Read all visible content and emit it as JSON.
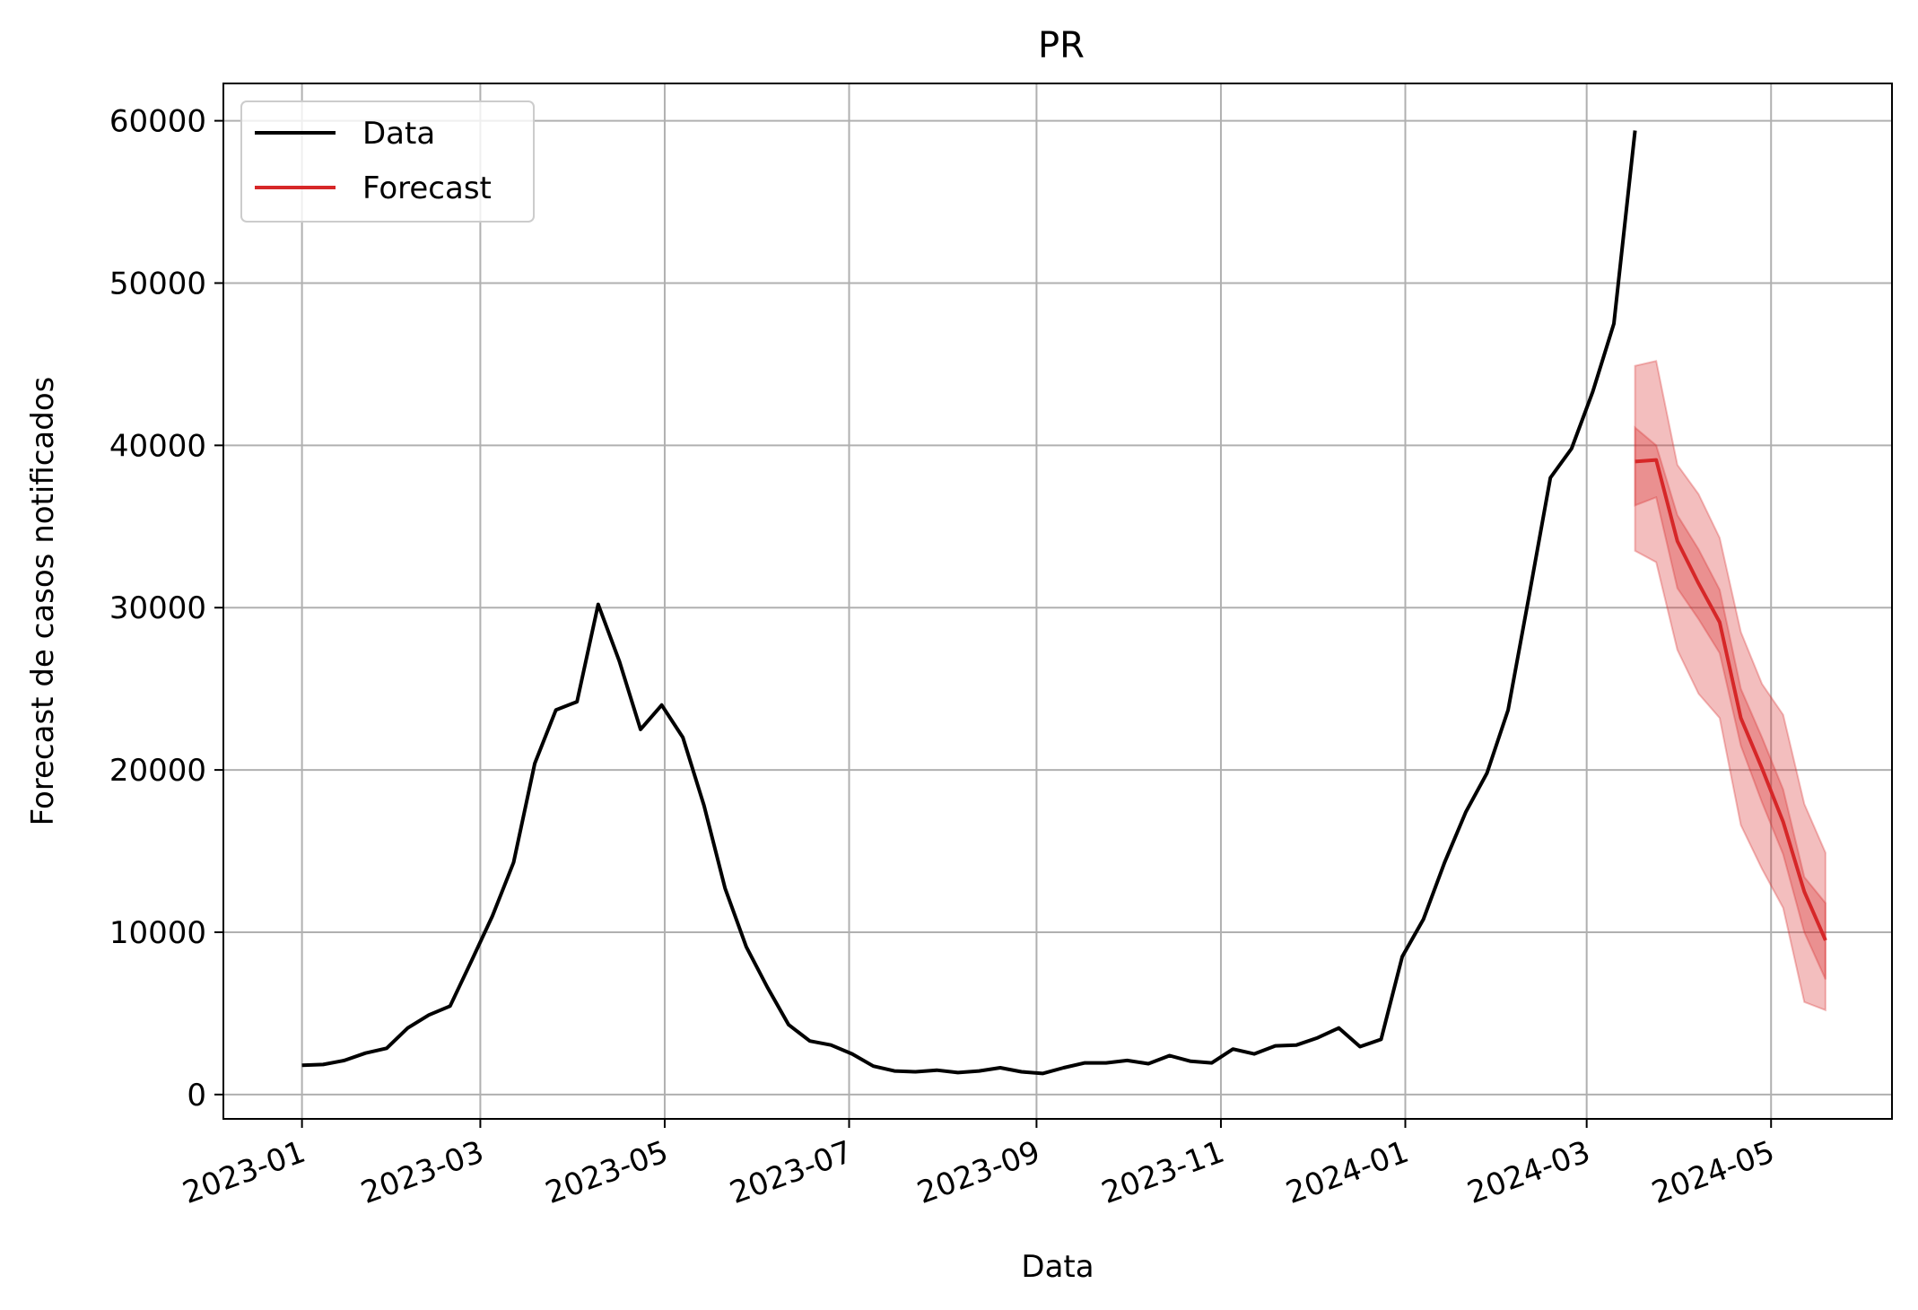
{
  "chart_data": {
    "type": "line",
    "title": "PR",
    "xlabel": "Data",
    "ylabel": "Forecast de casos notificados",
    "xlim": [
      "2022-12-06",
      "2024-06-10"
    ],
    "ylim": [
      -1500,
      62300
    ],
    "grid": true,
    "legend_position": "upper left",
    "x_tick_labels": [
      "2023-01",
      "2023-03",
      "2023-05",
      "2023-07",
      "2023-09",
      "2023-11",
      "2024-01",
      "2024-03",
      "2024-05"
    ],
    "y_tick_labels": [
      "0",
      "10000",
      "20000",
      "30000",
      "40000",
      "50000",
      "60000"
    ],
    "legend": [
      {
        "label": "Data",
        "color": "#000000"
      },
      {
        "label": "Forecast",
        "color": "#d62728"
      }
    ],
    "series": [
      {
        "name": "Data",
        "color": "#000000",
        "points": [
          [
            "2023-01-01",
            1800
          ],
          [
            "2023-01-08",
            1850
          ],
          [
            "2023-01-15",
            2100
          ],
          [
            "2023-01-22",
            2550
          ],
          [
            "2023-01-29",
            2850
          ],
          [
            "2023-02-05",
            4100
          ],
          [
            "2023-02-12",
            4900
          ],
          [
            "2023-02-19",
            5450
          ],
          [
            "2023-02-26",
            8200
          ],
          [
            "2023-03-05",
            11000
          ],
          [
            "2023-03-12",
            14300
          ],
          [
            "2023-03-19",
            20400
          ],
          [
            "2023-03-26",
            23700
          ],
          [
            "2023-04-02",
            24200
          ],
          [
            "2023-04-09",
            30200
          ],
          [
            "2023-04-16",
            26700
          ],
          [
            "2023-04-23",
            22500
          ],
          [
            "2023-04-30",
            24000
          ],
          [
            "2023-05-07",
            22000
          ],
          [
            "2023-05-14",
            17800
          ],
          [
            "2023-05-21",
            12700
          ],
          [
            "2023-05-28",
            9100
          ],
          [
            "2023-06-04",
            6600
          ],
          [
            "2023-06-11",
            4300
          ],
          [
            "2023-06-18",
            3300
          ],
          [
            "2023-06-25",
            3050
          ],
          [
            "2023-07-02",
            2500
          ],
          [
            "2023-07-09",
            1750
          ],
          [
            "2023-07-16",
            1450
          ],
          [
            "2023-07-23",
            1400
          ],
          [
            "2023-07-30",
            1500
          ],
          [
            "2023-08-06",
            1350
          ],
          [
            "2023-08-13",
            1450
          ],
          [
            "2023-08-20",
            1650
          ],
          [
            "2023-08-27",
            1400
          ],
          [
            "2023-09-03",
            1300
          ],
          [
            "2023-09-10",
            1650
          ],
          [
            "2023-09-17",
            1950
          ],
          [
            "2023-09-24",
            1950
          ],
          [
            "2023-10-01",
            2100
          ],
          [
            "2023-10-08",
            1900
          ],
          [
            "2023-10-15",
            2400
          ],
          [
            "2023-10-22",
            2050
          ],
          [
            "2023-10-29",
            1950
          ],
          [
            "2023-11-05",
            2800
          ],
          [
            "2023-11-12",
            2500
          ],
          [
            "2023-11-19",
            3000
          ],
          [
            "2023-11-26",
            3050
          ],
          [
            "2023-12-03",
            3500
          ],
          [
            "2023-12-10",
            4100
          ],
          [
            "2023-12-17",
            2950
          ],
          [
            "2023-12-24",
            3400
          ],
          [
            "2023-12-31",
            8500
          ],
          [
            "2024-01-07",
            10800
          ],
          [
            "2024-01-14",
            14300
          ],
          [
            "2024-01-21",
            17400
          ],
          [
            "2024-01-28",
            19800
          ],
          [
            "2024-02-04",
            23700
          ],
          [
            "2024-02-11",
            30800
          ],
          [
            "2024-02-18",
            38000
          ],
          [
            "2024-02-25",
            39800
          ],
          [
            "2024-03-03",
            43300
          ],
          [
            "2024-03-10",
            47500
          ],
          [
            "2024-03-17",
            59400
          ]
        ]
      },
      {
        "name": "Forecast",
        "color": "#d62728",
        "points": [
          [
            "2024-03-17",
            39000
          ],
          [
            "2024-03-24",
            39100
          ],
          [
            "2024-03-31",
            34100
          ],
          [
            "2024-04-07",
            31500
          ],
          [
            "2024-04-14",
            29100
          ],
          [
            "2024-04-21",
            23200
          ],
          [
            "2024-04-28",
            20100
          ],
          [
            "2024-05-05",
            16800
          ],
          [
            "2024-05-12",
            12500
          ],
          [
            "2024-05-19",
            9500
          ]
        ],
        "band_inner": [
          [
            "2024-03-17",
            36300,
            41100
          ],
          [
            "2024-03-24",
            36800,
            40000
          ],
          [
            "2024-03-31",
            31200,
            35700
          ],
          [
            "2024-04-07",
            29300,
            33600
          ],
          [
            "2024-04-14",
            27200,
            31100
          ],
          [
            "2024-04-21",
            21500,
            25000
          ],
          [
            "2024-04-28",
            18000,
            22000
          ],
          [
            "2024-05-05",
            14800,
            18800
          ],
          [
            "2024-05-12",
            10000,
            13400
          ],
          [
            "2024-05-19",
            7100,
            11800
          ]
        ],
        "band_outer": [
          [
            "2024-03-17",
            33500,
            44900
          ],
          [
            "2024-03-24",
            32800,
            45200
          ],
          [
            "2024-03-31",
            27400,
            38800
          ],
          [
            "2024-04-07",
            24700,
            37000
          ],
          [
            "2024-04-14",
            23200,
            34300
          ],
          [
            "2024-04-21",
            16600,
            28500
          ],
          [
            "2024-04-28",
            13900,
            25300
          ],
          [
            "2024-05-05",
            11500,
            23400
          ],
          [
            "2024-05-12",
            5700,
            17900
          ],
          [
            "2024-05-19",
            5200,
            14900
          ]
        ]
      }
    ]
  }
}
